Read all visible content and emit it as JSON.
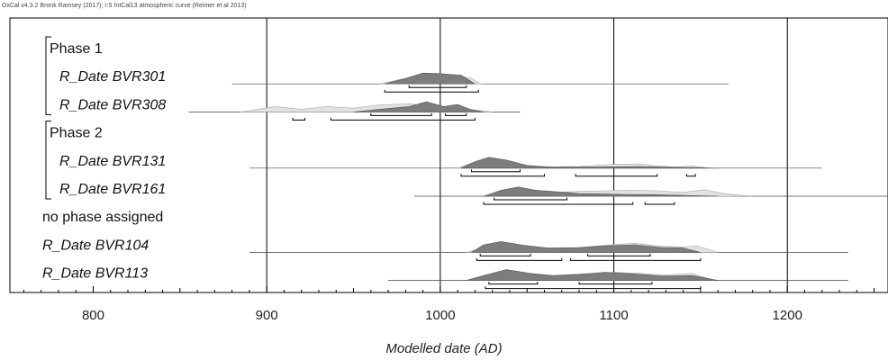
{
  "header": "OxCal v4.3.2 Bronk Ramsey (2017); r:5 IntCal13 atmospheric curve (Reimer et al 2013)",
  "chart_data": {
    "type": "area",
    "xlabel": "Modelled date (AD)",
    "xlim": [
      752,
      1258
    ],
    "major_ticks": [
      800,
      900,
      1000,
      1100,
      1200
    ],
    "gridlines": [
      900,
      1000,
      1100,
      1200
    ],
    "minor_tick_step": 10,
    "rows": [
      {
        "label": "Phase 1",
        "kind": "phase"
      },
      {
        "label": "R_Date BVR301",
        "kind": "date",
        "indent": true,
        "line": [
          880,
          1166
        ],
        "prior": [
          [
            965,
            0
          ],
          [
            975,
            0.35
          ],
          [
            988,
            0.75
          ],
          [
            1000,
            0.8
          ],
          [
            1008,
            0.85
          ],
          [
            1018,
            0.5
          ],
          [
            1023,
            0
          ]
        ],
        "posterior": [
          [
            968,
            0
          ],
          [
            980,
            0.5
          ],
          [
            990,
            1
          ],
          [
            1000,
            0.95
          ],
          [
            1012,
            0.8
          ],
          [
            1020,
            0
          ]
        ],
        "ranges": [
          [
            [
              982,
              1015
            ]
          ],
          [
            [
              968,
              1022
            ]
          ]
        ]
      },
      {
        "label": "R_Date BVR308",
        "kind": "date",
        "indent": true,
        "line": [
          855,
          1046
        ],
        "prior": [
          [
            885,
            0
          ],
          [
            905,
            0.5
          ],
          [
            920,
            0.25
          ],
          [
            935,
            0.5
          ],
          [
            950,
            0.35
          ],
          [
            965,
            0.65
          ],
          [
            982,
            0.75
          ],
          [
            995,
            0.55
          ],
          [
            1010,
            0.4
          ],
          [
            1030,
            0
          ]
        ],
        "posterior": [
          [
            950,
            0
          ],
          [
            965,
            0.25
          ],
          [
            982,
            0.5
          ],
          [
            992,
            0.95
          ],
          [
            1002,
            0.5
          ],
          [
            1010,
            0.7
          ],
          [
            1018,
            0.2
          ],
          [
            1025,
            0
          ]
        ],
        "ranges": [
          [
            [
              960,
              995
            ],
            [
              1003,
              1015
            ]
          ],
          [
            [
              915,
              922
            ],
            [
              937,
              1020
            ]
          ]
        ]
      },
      {
        "label": "Phase 2",
        "kind": "phase"
      },
      {
        "label": "R_Date BVR131",
        "kind": "date",
        "indent": true,
        "line": [
          890,
          1220
        ],
        "prior": [
          [
            1010,
            0
          ],
          [
            1022,
            0.7
          ],
          [
            1035,
            0.55
          ],
          [
            1048,
            0.2
          ],
          [
            1060,
            0.1
          ],
          [
            1080,
            0.15
          ],
          [
            1100,
            0.35
          ],
          [
            1115,
            0.4
          ],
          [
            1125,
            0.2
          ],
          [
            1135,
            0.1
          ],
          [
            1145,
            0.2
          ],
          [
            1155,
            0
          ]
        ],
        "posterior": [
          [
            1012,
            0
          ],
          [
            1020,
            0.6
          ],
          [
            1028,
            1
          ],
          [
            1038,
            0.75
          ],
          [
            1050,
            0.25
          ],
          [
            1065,
            0.08
          ],
          [
            1090,
            0.1
          ],
          [
            1115,
            0.15
          ],
          [
            1130,
            0.08
          ],
          [
            1145,
            0.05
          ],
          [
            1160,
            0
          ]
        ],
        "ranges": [
          [
            [
              1018,
              1046
            ]
          ],
          [
            [
              1012,
              1060
            ],
            [
              1078,
              1125
            ],
            [
              1142,
              1147
            ]
          ]
        ]
      },
      {
        "label": "R_Date BVR161",
        "kind": "date",
        "indent": true,
        "line": [
          985,
          1258
        ],
        "prior": [
          [
            1030,
            0
          ],
          [
            1045,
            0.5
          ],
          [
            1055,
            0.55
          ],
          [
            1068,
            0.35
          ],
          [
            1080,
            0.45
          ],
          [
            1095,
            0.5
          ],
          [
            1110,
            0.55
          ],
          [
            1125,
            0.5
          ],
          [
            1140,
            0.35
          ],
          [
            1152,
            0.6
          ],
          [
            1165,
            0.2
          ],
          [
            1180,
            0
          ]
        ],
        "posterior": [
          [
            1025,
            0
          ],
          [
            1035,
            0.55
          ],
          [
            1045,
            0.85
          ],
          [
            1055,
            0.55
          ],
          [
            1068,
            0.4
          ],
          [
            1080,
            0.25
          ],
          [
            1095,
            0.2
          ],
          [
            1110,
            0.15
          ],
          [
            1120,
            0.15
          ],
          [
            1135,
            0.1
          ],
          [
            1160,
            0
          ]
        ],
        "ranges": [
          [
            [
              1031,
              1073
            ]
          ],
          [
            [
              1025,
              1111
            ],
            [
              1118,
              1135
            ]
          ]
        ]
      },
      {
        "label": "no phase assigned",
        "kind": "group"
      },
      {
        "label": "R_Date BVR104",
        "kind": "date",
        "indent": false,
        "line": [
          890,
          1235
        ],
        "prior": [
          [
            1015,
            0
          ],
          [
            1030,
            0.65
          ],
          [
            1045,
            0.45
          ],
          [
            1060,
            0.3
          ],
          [
            1080,
            0.45
          ],
          [
            1095,
            0.65
          ],
          [
            1112,
            0.85
          ],
          [
            1125,
            0.6
          ],
          [
            1140,
            0.5
          ],
          [
            1148,
            0.6
          ],
          [
            1160,
            0
          ]
        ],
        "posterior": [
          [
            1018,
            0
          ],
          [
            1025,
            0.7
          ],
          [
            1035,
            1
          ],
          [
            1048,
            0.65
          ],
          [
            1062,
            0.4
          ],
          [
            1080,
            0.45
          ],
          [
            1095,
            0.6
          ],
          [
            1112,
            0.7
          ],
          [
            1128,
            0.45
          ],
          [
            1140,
            0.4
          ],
          [
            1150,
            0
          ]
        ],
        "ranges": [
          [
            [
              1023,
              1052
            ],
            [
              1085,
              1121
            ]
          ],
          [
            [
              1021,
              1070
            ],
            [
              1075,
              1150
            ]
          ]
        ]
      },
      {
        "label": "R_Date BVR113",
        "kind": "date",
        "indent": false,
        "line": [
          970,
          1235
        ],
        "prior": [
          [
            1015,
            0
          ],
          [
            1028,
            0.5
          ],
          [
            1040,
            0.45
          ],
          [
            1060,
            0.4
          ],
          [
            1080,
            0.6
          ],
          [
            1100,
            0.75
          ],
          [
            1115,
            0.65
          ],
          [
            1130,
            0.5
          ],
          [
            1145,
            0.65
          ],
          [
            1158,
            0
          ]
        ],
        "posterior": [
          [
            1015,
            0
          ],
          [
            1025,
            0.45
          ],
          [
            1038,
            1
          ],
          [
            1052,
            0.65
          ],
          [
            1065,
            0.45
          ],
          [
            1080,
            0.55
          ],
          [
            1095,
            0.75
          ],
          [
            1112,
            0.6
          ],
          [
            1128,
            0.4
          ],
          [
            1145,
            0.45
          ],
          [
            1160,
            0
          ]
        ],
        "ranges": [
          [
            [
              1028,
              1056
            ],
            [
              1080,
              1122
            ]
          ],
          [
            [
              1026,
              1150
            ]
          ]
        ]
      }
    ]
  },
  "colors": {
    "prior": "#e2e2e2",
    "prior_stroke": "#aaaaaa",
    "posterior": "#7d7d7d",
    "posterior_stroke": "#555555",
    "axis": "#000000",
    "grid": "#000000"
  }
}
